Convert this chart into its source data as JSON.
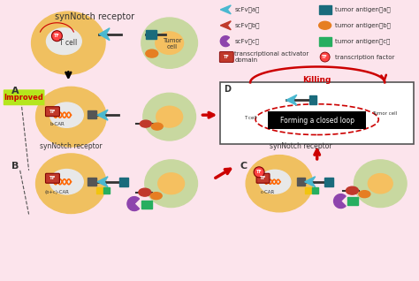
{
  "bg_color": "#fce4ec",
  "title_top": "synNotch receptor",
  "improved_label": "Improved",
  "improved_color": "#b5e61d",
  "improved_text_color": "#cc0000",
  "legend_items_left": [
    {
      "label": "scFv（a）",
      "color": "#4ab8d0",
      "shape": "arrow_left"
    },
    {
      "label": "scFv（b）",
      "color": "#c0392b",
      "shape": "arrow_left"
    },
    {
      "label": "scFv（c）",
      "color": "#8e44ad",
      "shape": "c_shape"
    },
    {
      "label": "transcriptional activator\ndomain",
      "color": "#c0392b",
      "shape": "tf_box"
    }
  ],
  "legend_items_right": [
    {
      "label": "tumor antigen（a）",
      "color": "#1a6b7c",
      "shape": "arrow_right"
    },
    {
      "label": "tumor antigen（b）",
      "color": "#e67e22",
      "shape": "oval"
    },
    {
      "label": "tumor antigen（c）",
      "color": "#27ae60",
      "shape": "rect"
    },
    {
      "label": "transcription factor",
      "color": "#c0392b",
      "shape": "tf_circle"
    }
  ],
  "panel_D_title": "Killing",
  "panel_D_text": "Forming a closed loop",
  "tcell_color": "#f0c060",
  "tcell_nucleus": "#e8e8e8",
  "tumor_color": "#c8d8a0",
  "tumor_nucleus": "#f5c060",
  "section_A": "A",
  "section_B": "B",
  "section_C": "C",
  "section_D": "D",
  "synnotch_B": "synNotch receptor",
  "synnotch_C": "synNotch receptor",
  "label_b_car": "b-CAR",
  "label_bc_car": "(b+c)-CAR",
  "label_c_car": "c-CAR"
}
